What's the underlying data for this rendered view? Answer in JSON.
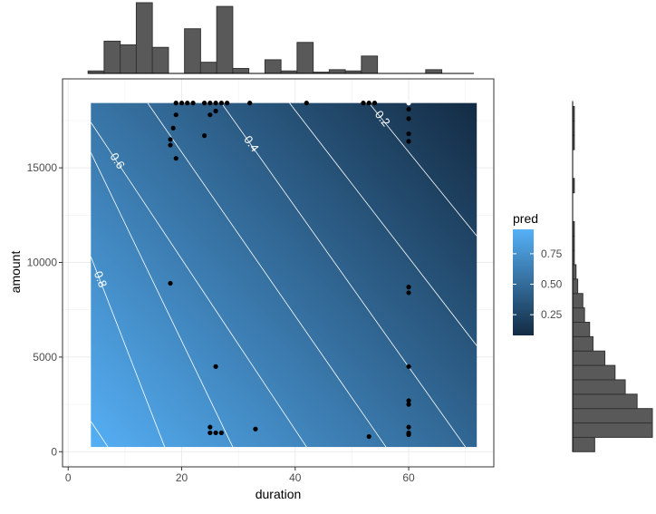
{
  "chart_data": {
    "type": "heatmap",
    "title": "",
    "xlabel": "duration",
    "ylabel": "amount",
    "xlim": [
      -1,
      75
    ],
    "ylim": [
      -800,
      19700
    ],
    "xticks": [
      0,
      20,
      40,
      60
    ],
    "yticks": [
      0,
      5000,
      10000,
      15000
    ],
    "grid": true,
    "legend": {
      "title": "pred",
      "placement": "right",
      "ticks": [
        0.25,
        0.5,
        0.75
      ],
      "range": [
        0.08,
        0.95
      ],
      "color_low": "#132B43",
      "color_high": "#56B1F7"
    },
    "surface": {
      "x_range": [
        4,
        72
      ],
      "y_range": [
        250,
        18424
      ],
      "pred_low_corner": 0.95,
      "pred_high_corner": 0.08
    },
    "contours": [
      {
        "level": 0.2,
        "label": "0.2",
        "x1": 72,
        "y1": 11400,
        "x2": 53,
        "y2": 18424
      },
      {
        "level": 0.3,
        "label": "",
        "x1": 72,
        "y1": 5600,
        "x2": 39,
        "y2": 18424
      },
      {
        "level": 0.4,
        "label": "0.4",
        "x1": 70,
        "y1": 250,
        "x2": 27,
        "y2": 18424
      },
      {
        "level": 0.5,
        "label": "",
        "x1": 56,
        "y1": 250,
        "x2": 14,
        "y2": 18424
      },
      {
        "level": 0.6,
        "label": "0.6",
        "x1": 42,
        "y1": 250,
        "x2": 4,
        "y2": 17400
      },
      {
        "level": 0.7,
        "label": "",
        "x1": 29,
        "y1": 250,
        "x2": 4,
        "y2": 15800
      },
      {
        "level": 0.8,
        "label": "0.8",
        "x1": 17,
        "y1": 250,
        "x2": 4,
        "y2": 10300
      },
      {
        "level": 0.9,
        "label": "",
        "x1": 7,
        "y1": 250,
        "x2": 4,
        "y2": 1600
      }
    ],
    "points": [
      {
        "x": 18,
        "y": 8900
      },
      {
        "x": 18,
        "y": 16200
      },
      {
        "x": 18,
        "y": 16500
      },
      {
        "x": 18.5,
        "y": 17100
      },
      {
        "x": 19,
        "y": 17800
      },
      {
        "x": 19,
        "y": 15500
      },
      {
        "x": 19,
        "y": 18424
      },
      {
        "x": 20,
        "y": 18424
      },
      {
        "x": 21,
        "y": 18424
      },
      {
        "x": 22,
        "y": 18424
      },
      {
        "x": 24,
        "y": 18424
      },
      {
        "x": 25,
        "y": 18424
      },
      {
        "x": 26,
        "y": 18424
      },
      {
        "x": 27,
        "y": 18424
      },
      {
        "x": 28,
        "y": 18424
      },
      {
        "x": 32,
        "y": 18424
      },
      {
        "x": 24,
        "y": 16700
      },
      {
        "x": 25,
        "y": 17800
      },
      {
        "x": 26,
        "y": 18000
      },
      {
        "x": 42,
        "y": 18424
      },
      {
        "x": 52,
        "y": 18424
      },
      {
        "x": 53,
        "y": 18424
      },
      {
        "x": 54,
        "y": 18424
      },
      {
        "x": 60,
        "y": 18100
      },
      {
        "x": 60,
        "y": 17600
      },
      {
        "x": 60,
        "y": 16800
      },
      {
        "x": 60,
        "y": 16400
      },
      {
        "x": 60,
        "y": 8700
      },
      {
        "x": 60,
        "y": 8400
      },
      {
        "x": 60,
        "y": 4500
      },
      {
        "x": 60,
        "y": 2700
      },
      {
        "x": 60,
        "y": 2500
      },
      {
        "x": 60,
        "y": 1300
      },
      {
        "x": 60,
        "y": 1000
      },
      {
        "x": 60,
        "y": 900
      },
      {
        "x": 26,
        "y": 4500
      },
      {
        "x": 25,
        "y": 1300
      },
      {
        "x": 25,
        "y": 1000
      },
      {
        "x": 26,
        "y": 1000
      },
      {
        "x": 27,
        "y": 1000
      },
      {
        "x": 33,
        "y": 1200
      },
      {
        "x": 53,
        "y": 800
      }
    ],
    "highlight_point": {
      "x": 60,
      "y": 18424
    },
    "hist_x": {
      "bin_edges": [
        3.5,
        6.33,
        9.17,
        12,
        14.83,
        17.67,
        20.5,
        23.33,
        26.17,
        29,
        31.83,
        34.67,
        37.5,
        40.33,
        43.17,
        46,
        48.83,
        51.67,
        54.5,
        57.33,
        60.17,
        63,
        65.83,
        68.67,
        71.5
      ],
      "counts": [
        2,
        26,
        23,
        57,
        21,
        0,
        36,
        9,
        54,
        4,
        0,
        11,
        2,
        25,
        1,
        3,
        2,
        14,
        0,
        0,
        0,
        3,
        0,
        0
      ]
    },
    "hist_y": {
      "bin_edges": [
        0,
        760,
        1520,
        2280,
        3040,
        3800,
        4560,
        5320,
        6080,
        6840,
        7600,
        8360,
        9120,
        9880,
        10640,
        11400,
        12160,
        12920,
        13680,
        14440,
        15200,
        15960,
        16720,
        17480,
        18240
      ],
      "counts": [
        13,
        47,
        47,
        38,
        31,
        25,
        19,
        12,
        10,
        7,
        6,
        3,
        2,
        1,
        1,
        1,
        0,
        0,
        1,
        0,
        0,
        1,
        1,
        1,
        0
      ]
    }
  }
}
